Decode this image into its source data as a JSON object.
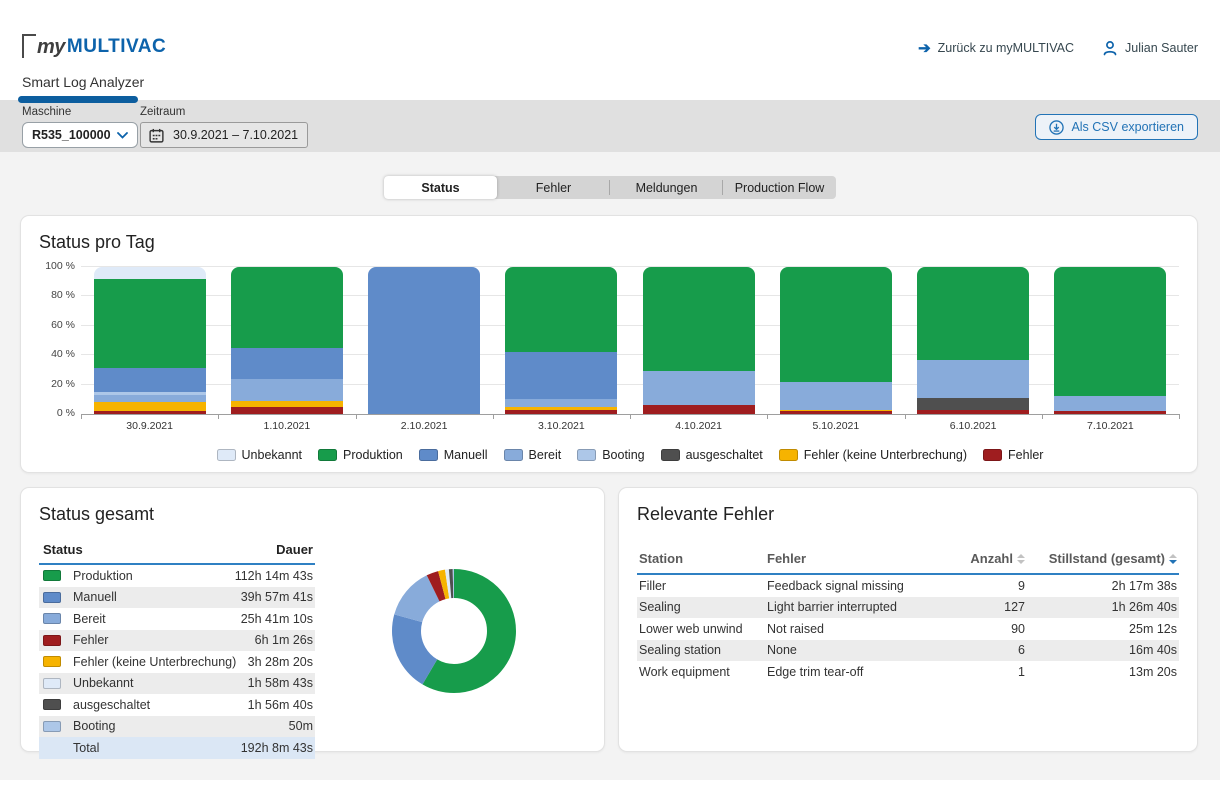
{
  "header": {
    "logo_my": "my",
    "logo_brand": "MULTIVAC",
    "back_link": "Zurück zu myMULTIVAC",
    "user_name": "Julian Sauter",
    "app_tab": "Smart Log Analyzer"
  },
  "filters": {
    "machine_label": "Maschine",
    "machine_value": "R535_100000",
    "period_label": "Zeitraum",
    "period_value": "30.9.2021 – 7.10.2021",
    "export_button": "Als CSV exportieren"
  },
  "tabs": {
    "items": [
      {
        "label": "Status",
        "active": true
      },
      {
        "label": "Fehler",
        "active": false
      },
      {
        "label": "Meldungen",
        "active": false
      },
      {
        "label": "Production Flow",
        "active": false
      }
    ]
  },
  "colors": {
    "brand_blue": "#0d63ab",
    "table_rule_blue": "#2f80c3",
    "produktion": "#179c4b",
    "manuell": "#5f8bc9",
    "bereit": "#88abda",
    "booting": "#adc7e8",
    "unbekannt": "#dfeaf8",
    "ausgeschaltet": "#4f4f4f",
    "fehler_ku": "#f6b300",
    "fehler": "#9f1d1f"
  },
  "panels": {
    "status_per_day": {
      "title": "Status pro Tag"
    },
    "status_total": {
      "title": "Status gesamt",
      "columns": [
        "Status",
        "Dauer"
      ],
      "rows": [
        {
          "status": "Produktion",
          "color_key": "produktion",
          "dauer": "112h 14m 43s"
        },
        {
          "status": "Manuell",
          "color_key": "manuell",
          "dauer": "39h 57m 41s"
        },
        {
          "status": "Bereit",
          "color_key": "bereit",
          "dauer": "25h 41m 10s"
        },
        {
          "status": "Fehler",
          "color_key": "fehler",
          "dauer": "6h 1m 26s"
        },
        {
          "status": "Fehler (keine Unterbrechung)",
          "color_key": "fehler_ku",
          "dauer": "3h 28m 20s"
        },
        {
          "status": "Unbekannt",
          "color_key": "unbekannt",
          "dauer": "1h 58m 43s"
        },
        {
          "status": "ausgeschaltet",
          "color_key": "ausgeschaltet",
          "dauer": "1h 56m 40s"
        },
        {
          "status": "Booting",
          "color_key": "booting",
          "dauer": "50m"
        }
      ],
      "total_row": {
        "status": "Total",
        "dauer": "192h 8m 43s"
      }
    },
    "relevant_errors": {
      "title": "Relevante Fehler",
      "columns": [
        "Station",
        "Fehler",
        "Anzahl",
        "Stillstand (gesamt)"
      ],
      "rows": [
        [
          "Filler",
          "Feedback signal missing",
          "9",
          "2h 17m 38s"
        ],
        [
          "Sealing",
          "Light barrier interrupted",
          "127",
          "1h 26m 40s"
        ],
        [
          "Lower web unwind",
          "Not raised",
          "90",
          "25m 12s"
        ],
        [
          "Sealing station",
          "None",
          "6",
          "16m 40s"
        ],
        [
          "Work equipment",
          "Edge trim tear-off",
          "1",
          "13m 20s"
        ]
      ]
    }
  },
  "chart_data": [
    {
      "type": "bar",
      "subtype": "stacked-100-percent",
      "title": "Status pro Tag",
      "categories": [
        "30.9.2021",
        "1.10.2021",
        "2.10.2021",
        "3.10.2021",
        "4.10.2021",
        "5.10.2021",
        "6.10.2021",
        "7.10.2021"
      ],
      "ylabel": "",
      "xlabel": "",
      "ylim": [
        0,
        100
      ],
      "ytick_labels": [
        "0 %",
        "20 %",
        "40 %",
        "60 %",
        "80 %",
        "100 %"
      ],
      "grid": true,
      "legend_position": "bottom",
      "stack_order_bottom_to_top": [
        "Fehler",
        "Fehler (keine Unterbrechung)",
        "ausgeschaltet",
        "Bereit",
        "Booting",
        "Manuell",
        "Produktion",
        "Unbekannt"
      ],
      "series": [
        {
          "name": "Fehler",
          "color_key": "fehler",
          "values": [
            2,
            5,
            0,
            3,
            6,
            2,
            3,
            2
          ]
        },
        {
          "name": "Fehler (keine Unterbrechung)",
          "color_key": "fehler_ku",
          "values": [
            6,
            4,
            0,
            2,
            0,
            1,
            0,
            0
          ]
        },
        {
          "name": "ausgeschaltet",
          "color_key": "ausgeschaltet",
          "values": [
            0,
            0,
            0,
            0,
            0,
            0,
            8,
            0
          ]
        },
        {
          "name": "Bereit",
          "color_key": "bereit",
          "values": [
            5,
            15,
            0,
            5,
            23,
            19,
            26,
            10
          ]
        },
        {
          "name": "Booting",
          "color_key": "booting",
          "values": [
            2,
            0,
            0,
            0,
            0,
            0,
            0,
            0
          ]
        },
        {
          "name": "Manuell",
          "color_key": "manuell",
          "values": [
            16,
            21,
            100,
            32,
            0,
            0,
            0,
            0
          ]
        },
        {
          "name": "Produktion",
          "color_key": "produktion",
          "values": [
            61,
            55,
            0,
            58,
            71,
            78,
            63,
            88
          ]
        },
        {
          "name": "Unbekannt",
          "color_key": "unbekannt",
          "values": [
            8,
            0,
            0,
            0,
            0,
            0,
            0,
            0
          ]
        }
      ],
      "legend_order": [
        "Unbekannt",
        "Produktion",
        "Manuell",
        "Bereit",
        "Booting",
        "ausgeschaltet",
        "Fehler (keine Unterbrechung)",
        "Fehler"
      ]
    },
    {
      "type": "pie",
      "subtype": "donut",
      "title": "Status gesamt",
      "start_angle_deg": -90,
      "direction": "clockwise",
      "slices": [
        {
          "name": "Produktion",
          "color_key": "produktion",
          "percent": 58.4
        },
        {
          "name": "Manuell",
          "color_key": "manuell",
          "percent": 20.8
        },
        {
          "name": "Bereit",
          "color_key": "bereit",
          "percent": 13.4
        },
        {
          "name": "Fehler",
          "color_key": "fehler",
          "percent": 3.1
        },
        {
          "name": "Fehler (keine Unterbrechung)",
          "color_key": "fehler_ku",
          "percent": 1.8
        },
        {
          "name": "Unbekannt",
          "color_key": "unbekannt",
          "percent": 1.0
        },
        {
          "name": "ausgeschaltet",
          "color_key": "ausgeschaltet",
          "percent": 1.0
        },
        {
          "name": "Booting",
          "color_key": "booting",
          "percent": 0.5
        }
      ]
    }
  ]
}
